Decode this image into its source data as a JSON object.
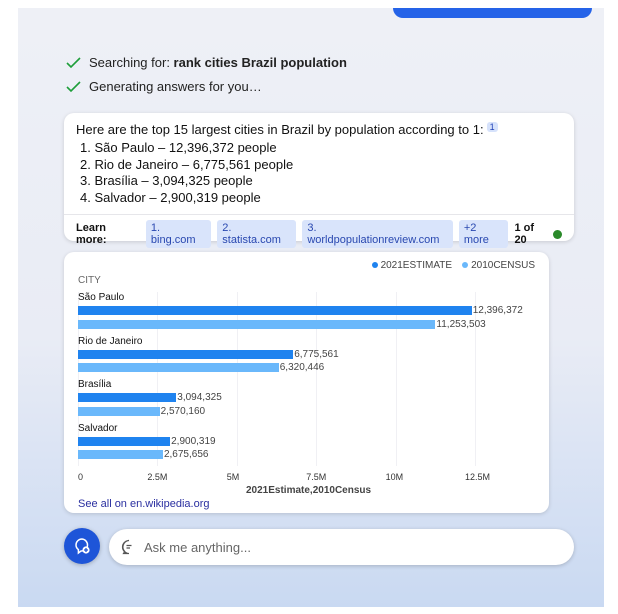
{
  "progress": [
    {
      "prefix": "Searching for: ",
      "bold": "rank cities Brazil population"
    },
    {
      "prefix": "Generating answers for you…",
      "bold": ""
    }
  ],
  "answer": {
    "intro": "Here are the top 15 largest cities in Brazil by population according to 1:",
    "citation": "1",
    "items": [
      "1. São Paulo – 12,396,372 people",
      "2. Rio de Janeiro – 6,775,561 people",
      "3. Brasília – 3,094,325 people",
      "4. Salvador – 2,900,319 people"
    ],
    "learn_more_label": "Learn more:",
    "sources": [
      "1. bing.com",
      "2. statista.com",
      "3. worldpopulationreview.com",
      "+2 more"
    ],
    "count": "1 of 20",
    "status_color": "#2a8a2a"
  },
  "chart_data": {
    "type": "bar",
    "orientation": "horizontal",
    "category_label": "CITY",
    "categories": [
      "São Paulo",
      "Rio de Janeiro",
      "Brasília",
      "Salvador"
    ],
    "series": [
      {
        "name": "2021ESTIMATE",
        "color": "#1f83ef",
        "values": [
          12396372,
          6775561,
          3094325,
          2900319
        ],
        "labels": [
          "12,396,372",
          "6,775,561",
          "3,094,325",
          "2,900,319"
        ]
      },
      {
        "name": "2010CENSUS",
        "color": "#6ab8fb",
        "values": [
          11253503,
          6320446,
          2570160,
          2675656
        ],
        "labels": [
          "11,253,503",
          "6,320,446",
          "2,570,160",
          "2,675,656"
        ]
      }
    ],
    "xlim": [
      0,
      12500000
    ],
    "xticks": [
      "0",
      "2.5M",
      "5M",
      "7.5M",
      "10M",
      "12.5M"
    ],
    "xlabel": "2021Estimate,2010Census",
    "grid": true,
    "legend": "top-right",
    "source_link": "See all on en.wikipedia.org"
  },
  "input": {
    "placeholder": "Ask me anything..."
  }
}
